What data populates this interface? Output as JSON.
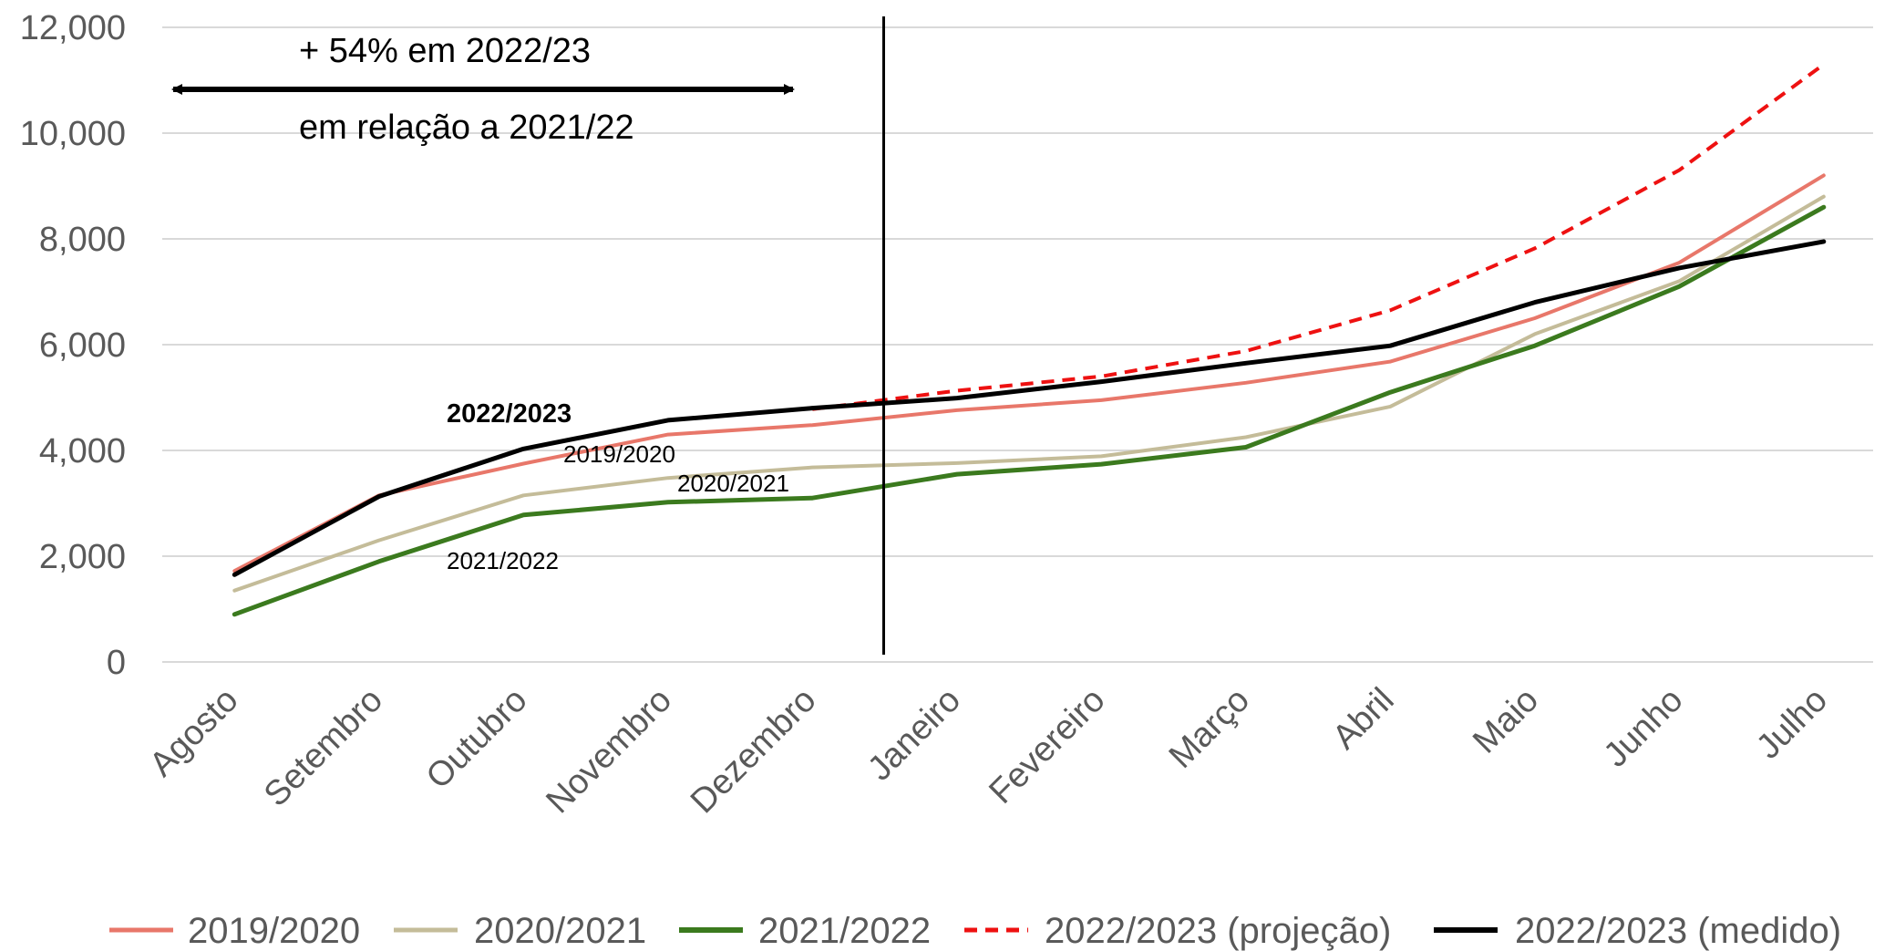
{
  "chart_data": {
    "type": "line",
    "categories": [
      "Agosto",
      "Setembro",
      "Outubro",
      "Novembro",
      "Dezembro",
      "Janeiro",
      "Fevereiro",
      "Março",
      "Abril",
      "Maio",
      "Junho",
      "Julho"
    ],
    "y_ticks": [
      "0",
      "2,000",
      "4,000",
      "6,000",
      "8,000",
      "10,000",
      "12,000"
    ],
    "ylim": [
      0,
      12000
    ],
    "grid": "horizontal",
    "legend_position": "bottom",
    "series": [
      {
        "name": "2019/2020",
        "color": "#E8776A",
        "dash": false,
        "width": 4,
        "values": [
          1720,
          3150,
          3750,
          4300,
          4480,
          4760,
          4950,
          5280,
          5680,
          6500,
          7550,
          9200
        ]
      },
      {
        "name": "2020/2021",
        "color": "#C4BC99",
        "dash": false,
        "width": 4,
        "values": [
          1350,
          2300,
          3150,
          3480,
          3680,
          3760,
          3890,
          4250,
          4830,
          6200,
          7200,
          8800
        ]
      },
      {
        "name": "2021/2022",
        "color": "#3B7A1E",
        "dash": false,
        "width": 5,
        "values": [
          900,
          1900,
          2780,
          3020,
          3100,
          3550,
          3740,
          4060,
          5100,
          5980,
          7100,
          8600
        ]
      },
      {
        "name": "2022/2023 (projeção)",
        "color": "#EE1111",
        "dash": true,
        "width": 4,
        "values": [
          null,
          null,
          null,
          null,
          4780,
          5130,
          5400,
          5880,
          6650,
          7820,
          9300,
          11300
        ]
      },
      {
        "name": "2022/2023 (medido)",
        "color": "#000000",
        "dash": false,
        "width": 5,
        "values": [
          1650,
          3130,
          4030,
          4570,
          4800,
          4990,
          5300,
          5650,
          5980,
          6800,
          7450,
          7950
        ]
      }
    ],
    "divider_after_category": "Dezembro",
    "annotation": {
      "line1": "+ 54% em 2022/23",
      "line2": "em relação a 2021/22"
    },
    "series_labels": {
      "s2022_2023": "2022/2023",
      "s2019_2020": "2019/2020",
      "s2020_2021": "2020/2021",
      "s2021_2022": "2021/2022"
    }
  }
}
